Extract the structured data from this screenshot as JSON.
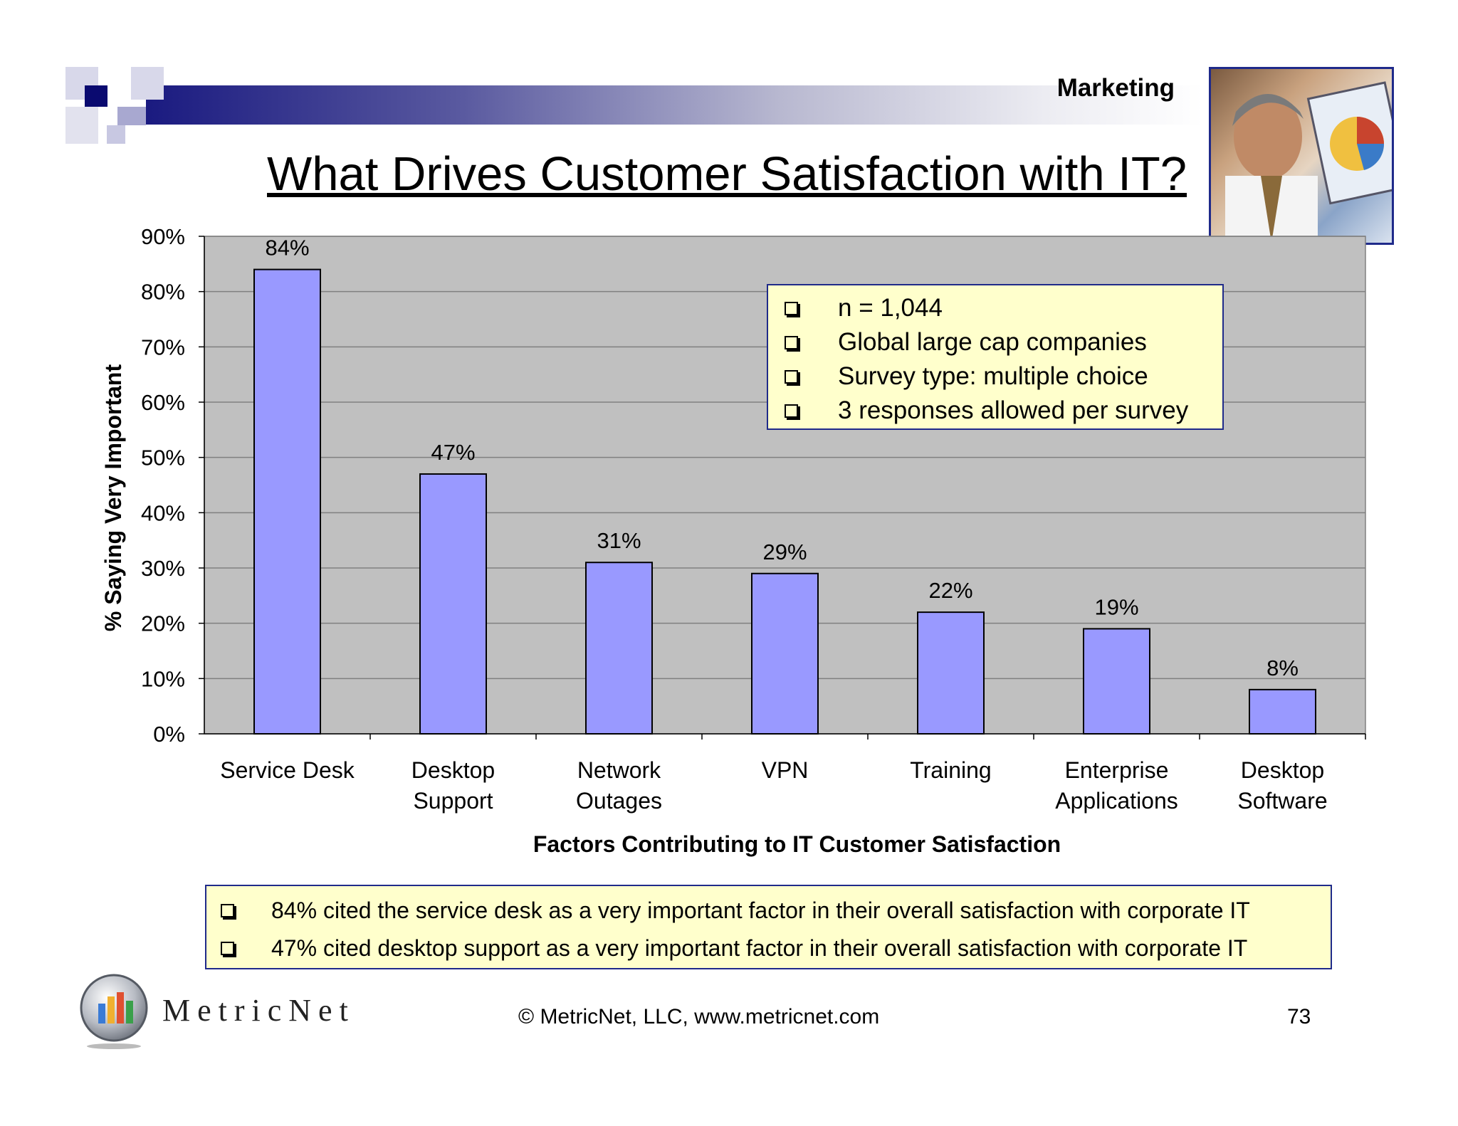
{
  "header": {
    "section": "Marketing",
    "title": "What Drives Customer Satisfaction with IT?"
  },
  "chart_data": {
    "type": "bar",
    "title": "What Drives Customer Satisfaction with IT?",
    "xlabel": "Factors Contributing to IT Customer Satisfaction",
    "ylabel": "% Saying Very Important",
    "ylim": [
      0,
      90
    ],
    "yticks": [
      "0%",
      "10%",
      "20%",
      "30%",
      "40%",
      "50%",
      "60%",
      "70%",
      "80%",
      "90%"
    ],
    "categories": [
      [
        "Service Desk"
      ],
      [
        "Desktop",
        "Support"
      ],
      [
        "Network",
        "Outages"
      ],
      [
        "VPN"
      ],
      [
        "Training"
      ],
      [
        "Enterprise",
        "Applications"
      ],
      [
        "Desktop",
        "Software"
      ]
    ],
    "values": [
      84,
      47,
      31,
      29,
      22,
      19,
      8
    ],
    "data_labels": [
      "84%",
      "47%",
      "31%",
      "29%",
      "22%",
      "19%",
      "8%"
    ],
    "colors": {
      "bar": "#9999ff",
      "plot_bg": "#c0c0c0",
      "grid": "#808080"
    }
  },
  "chart_note": {
    "items": [
      "n = 1,044",
      "Global large cap companies",
      "Survey type: multiple choice",
      "3 responses allowed per survey"
    ]
  },
  "findings": {
    "items": [
      "84% cited the service desk as a very important factor in their overall satisfaction with corporate IT",
      "47% cited desktop support as a very important factor in their overall satisfaction with corporate IT"
    ]
  },
  "footer": {
    "logo_text": "MetricNet",
    "copyright": "© MetricNet, LLC, www.metricnet.com",
    "page_number": "73"
  },
  "brand": {
    "navy": "#1a1a80",
    "border": "#1f2a8a",
    "note_bg": "#ffffcc"
  }
}
